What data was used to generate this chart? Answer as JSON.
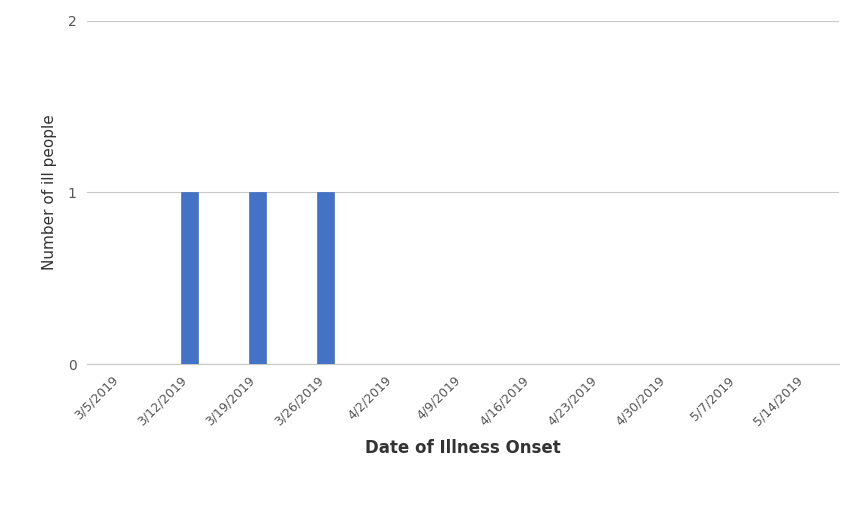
{
  "dates": [
    "3/5/2019",
    "3/12/2019",
    "3/19/2019",
    "3/26/2019",
    "4/2/2019",
    "4/9/2019",
    "4/16/2019",
    "4/23/2019",
    "4/30/2019",
    "5/7/2019",
    "5/14/2019"
  ],
  "values": [
    0,
    1,
    1,
    1,
    0,
    0,
    0,
    0,
    0,
    0,
    0
  ],
  "bar_color": "#4472C4",
  "bar_edge_color": "#4472C4",
  "ylabel": "Number of ill people",
  "xlabel": "Date of Illness Onset",
  "ylim": [
    0,
    2
  ],
  "yticks": [
    0,
    1,
    2
  ],
  "grid_color": "#C8C8C8",
  "background_color": "#FFFFFF",
  "bar_width": 0.25,
  "xlabel_fontsize": 12,
  "ylabel_fontsize": 11,
  "tick_fontsize": 9,
  "ytick_fontsize": 10
}
